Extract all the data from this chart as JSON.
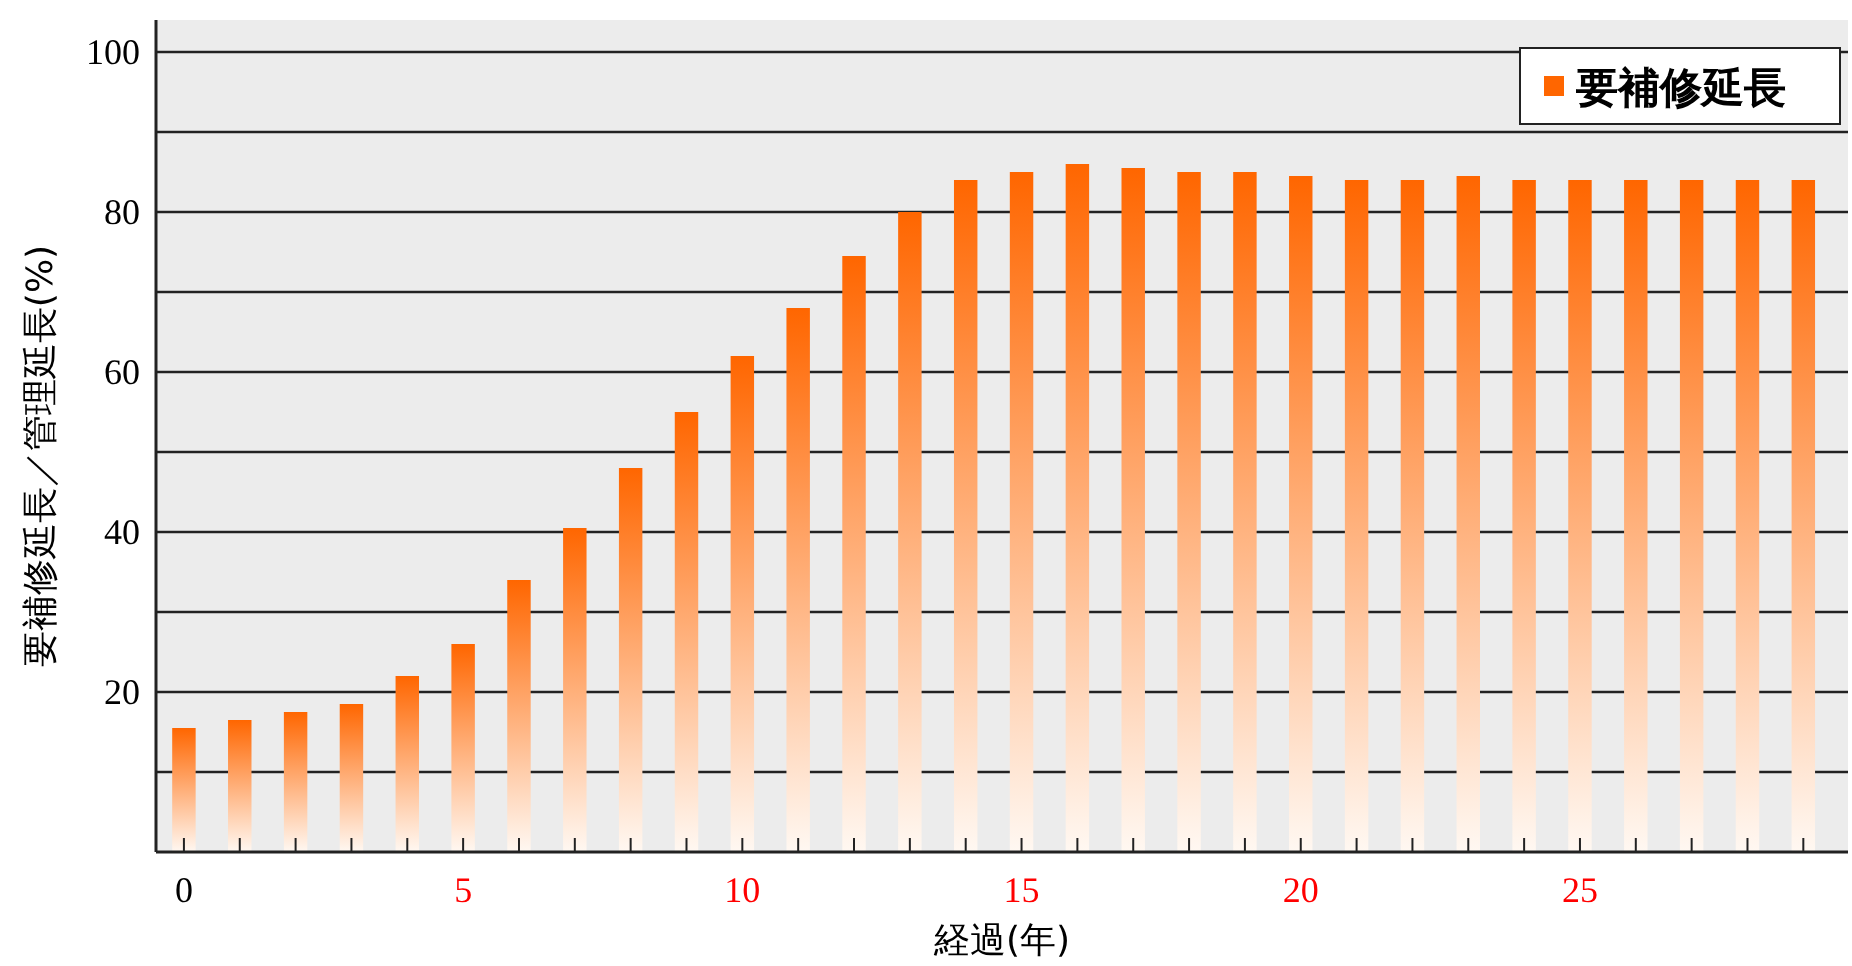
{
  "chart_data": {
    "type": "bar",
    "xlabel": "経過(年)",
    "ylabel": "要補修延長／管理延長(%)",
    "x": [
      0,
      1,
      2,
      3,
      4,
      5,
      6,
      7,
      8,
      9,
      10,
      11,
      12,
      13,
      14,
      15,
      16,
      17,
      18,
      19,
      20,
      21,
      22,
      23,
      24,
      25,
      26,
      27,
      28,
      29
    ],
    "series": [
      {
        "name": "要補修延長",
        "color": "#ff6600",
        "values": [
          15.5,
          16.5,
          17.5,
          18.5,
          22,
          26,
          34,
          40.5,
          48,
          55,
          62,
          68,
          74.5,
          80,
          84,
          85,
          86,
          85.5,
          85,
          85,
          84.5,
          84,
          84,
          84.5,
          84,
          84,
          84,
          84,
          84,
          84
        ]
      }
    ],
    "xlim": [
      -0.5,
      29.8
    ],
    "xticks": [
      0,
      {
        "value": 1,
        "label": null
      },
      {
        "value": 2,
        "label": null
      },
      {
        "value": 3,
        "label": null
      },
      {
        "value": 4,
        "label": null
      },
      5,
      {
        "value": 6,
        "label": null
      },
      {
        "value": 7,
        "label": null
      },
      {
        "value": 8,
        "label": null
      },
      {
        "value": 9,
        "label": null
      },
      10,
      {
        "value": 11,
        "label": null
      },
      {
        "value": 12,
        "label": null
      },
      {
        "value": 13,
        "label": null
      },
      {
        "value": 14,
        "label": null
      },
      15,
      {
        "value": 16,
        "label": null
      },
      {
        "value": 17,
        "label": null
      },
      {
        "value": 18,
        "label": null
      },
      {
        "value": 19,
        "label": null
      },
      20,
      {
        "value": 21,
        "label": null
      },
      {
        "value": 22,
        "label": null
      },
      {
        "value": 23,
        "label": null
      },
      {
        "value": 24,
        "label": null
      },
      25,
      {
        "value": 26,
        "label": null
      },
      {
        "value": 27,
        "label": null
      },
      {
        "value": 28,
        "label": null
      },
      {
        "value": 29,
        "label": null
      }
    ],
    "ylim": [
      0,
      104
    ],
    "yticks": [
      {
        "value": 10,
        "label": null
      },
      20,
      {
        "value": 30,
        "label": null
      },
      40,
      {
        "value": 50,
        "label": null
      },
      60,
      {
        "value": 70,
        "label": null
      },
      80,
      {
        "value": 90,
        "label": null
      },
      100
    ],
    "grid": "y",
    "legend": "top right"
  }
}
